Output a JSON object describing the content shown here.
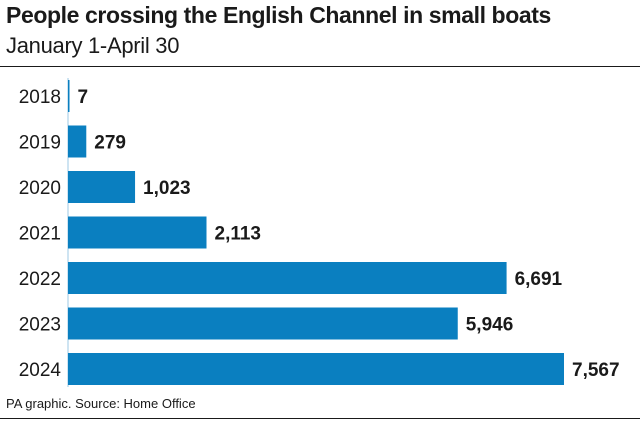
{
  "header": {
    "title": "People crossing the English Channel in small boats",
    "subtitle": "January 1-April 30"
  },
  "footer": {
    "source": "PA graphic. Source: Home Office"
  },
  "colors": {
    "bar": "#0a7fc0",
    "text": "#1a1a1a"
  },
  "chart_data": {
    "type": "bar",
    "orientation": "horizontal",
    "categories": [
      "2018",
      "2019",
      "2020",
      "2021",
      "2022",
      "2023",
      "2024"
    ],
    "values": [
      7,
      279,
      1023,
      2113,
      6691,
      5946,
      7567
    ],
    "value_labels": [
      "7",
      "279",
      "1,023",
      "2,113",
      "6,691",
      "5,946",
      "7,567"
    ],
    "title": "People crossing the English Channel in small boats",
    "subtitle": "January 1-April 30",
    "xlabel": "",
    "ylabel": "",
    "xlim": [
      0,
      7567
    ],
    "grid": false,
    "legend": "none"
  }
}
